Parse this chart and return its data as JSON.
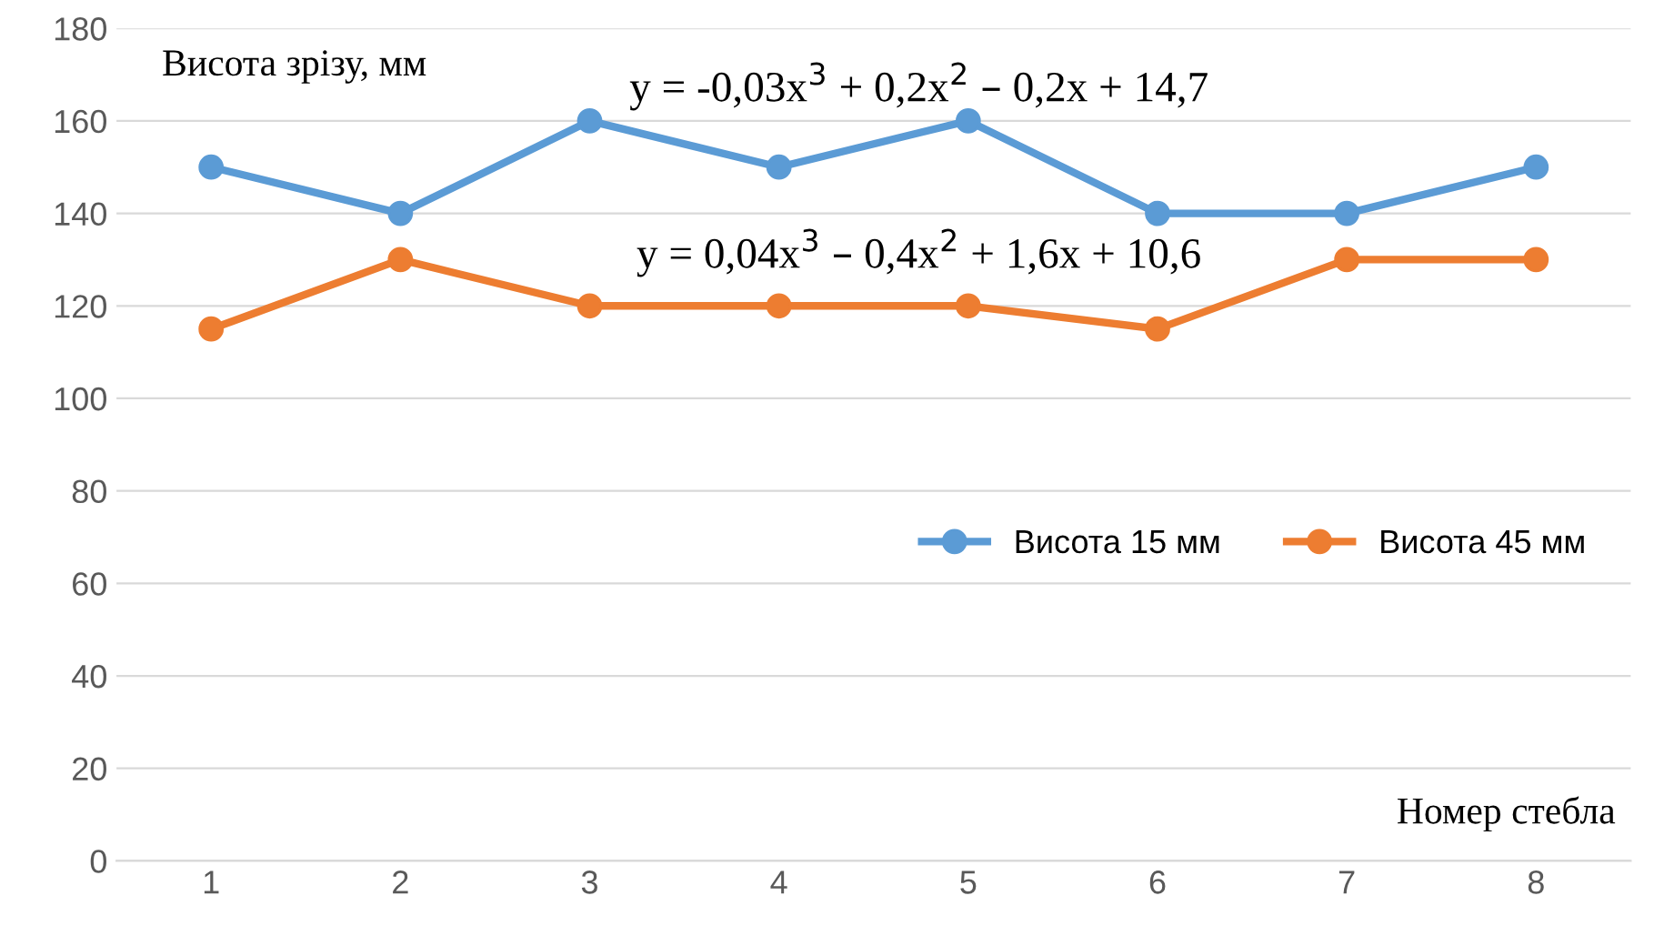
{
  "chart_data": {
    "type": "line",
    "xlabel": "Номер стебла",
    "ylabel": "Висота зрізу, мм",
    "categories": [
      "1",
      "2",
      "3",
      "4",
      "5",
      "6",
      "7",
      "8"
    ],
    "series": [
      {
        "name": "Висота 15 мм",
        "color": "#5b9bd5",
        "values": [
          150,
          140,
          160,
          150,
          160,
          140,
          140,
          150
        ]
      },
      {
        "name": "Висота 45 мм",
        "color": "#ed7d31",
        "values": [
          115,
          130,
          120,
          120,
          120,
          115,
          130,
          130
        ]
      }
    ],
    "annotations": [
      "y = -0,03x$^{3}$ + 0,2x$^{2}$ – 0,2x + 14,7",
      "y = 0,04x$^{3}$ – 0,4x$^{2}$ + 1,6x + 10,6"
    ],
    "ylim": [
      0,
      180
    ],
    "yticks": [
      0,
      20,
      40,
      60,
      80,
      100,
      120,
      140,
      160,
      180
    ],
    "grid": "y",
    "legend": "right",
    "marker": "circle",
    "line_style": "solid"
  }
}
